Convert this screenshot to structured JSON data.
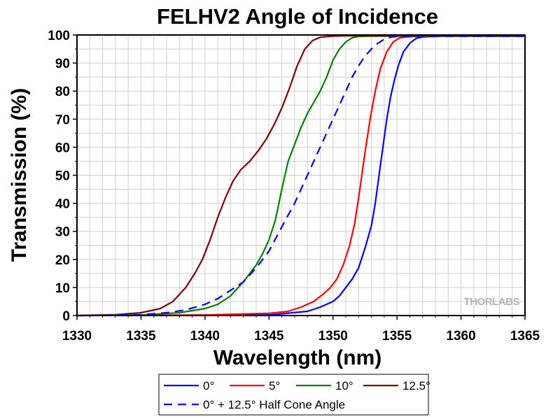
{
  "chart_data": {
    "type": "line",
    "title": "FELHV2 Angle of Incidence",
    "xlabel": "Wavelength (nm)",
    "ylabel": "Transmission (%)",
    "xlim": [
      1330,
      1365
    ],
    "ylim": [
      0,
      100
    ],
    "xticks": [
      1330,
      1335,
      1340,
      1345,
      1350,
      1355,
      1360,
      1365
    ],
    "yticks": [
      0,
      10,
      20,
      30,
      40,
      50,
      60,
      70,
      80,
      90,
      100
    ],
    "grid": true,
    "legend_position": "bottom",
    "watermark": "THORLABS",
    "series": [
      {
        "name": "0°",
        "color": "#0000ff",
        "dash": "solid",
        "x": [
          1330,
          1345,
          1348,
          1349,
          1350,
          1350.5,
          1351,
          1351.5,
          1352,
          1352.5,
          1353,
          1353.3,
          1353.6,
          1353.9,
          1354.2,
          1354.5,
          1354.8,
          1355.1,
          1355.5,
          1356,
          1356.5,
          1357,
          1358,
          1365
        ],
        "y": [
          0,
          0.2,
          1.5,
          3,
          5,
          7,
          10,
          13,
          17,
          24,
          32,
          40,
          50,
          60,
          70,
          78,
          84,
          89,
          94,
          97,
          98.8,
          99.3,
          99.5,
          99.6
        ]
      },
      {
        "name": "5°",
        "color": "#ff0000",
        "dash": "solid",
        "x": [
          1330,
          1340,
          1345,
          1346.5,
          1347.5,
          1348.5,
          1349.2,
          1349.8,
          1350.3,
          1350.8,
          1351.3,
          1351.7,
          1352.1,
          1352.5,
          1352.9,
          1353.3,
          1353.7,
          1354.2,
          1354.7,
          1355.2,
          1356,
          1357,
          1365
        ],
        "y": [
          0,
          0.2,
          0.8,
          1.5,
          3,
          5,
          7.5,
          10,
          13,
          18,
          25,
          33,
          45,
          58,
          70,
          80,
          88,
          94,
          97.5,
          99,
          99.4,
          99.5,
          99.6
        ]
      },
      {
        "name": "10°",
        "color": "#008000",
        "dash": "solid",
        "x": [
          1330,
          1335,
          1338,
          1340,
          1341,
          1342,
          1343,
          1344,
          1344.5,
          1345,
          1345.5,
          1346,
          1346.5,
          1347,
          1347.5,
          1348,
          1348.5,
          1349,
          1349.5,
          1350,
          1350.5,
          1351,
          1351.5,
          1352,
          1353,
          1365
        ],
        "y": [
          0,
          0.2,
          1,
          2.5,
          4,
          7,
          12,
          18,
          22,
          27,
          34,
          45,
          55,
          61,
          67,
          72,
          76,
          80,
          85,
          91,
          95,
          97.5,
          99,
          99.5,
          99.6,
          99.6
        ]
      },
      {
        "name": "12.5°",
        "color": "#800000",
        "dash": "solid",
        "x": [
          1330,
          1333,
          1335,
          1336.5,
          1337.5,
          1338.5,
          1339.2,
          1339.8,
          1340.4,
          1341,
          1341.6,
          1342.2,
          1342.8,
          1343.5,
          1344.2,
          1344.8,
          1345.4,
          1346,
          1346.6,
          1347.2,
          1347.8,
          1348.4,
          1349,
          1350,
          1351,
          1365
        ],
        "y": [
          0,
          0.3,
          1,
          2.5,
          5,
          10,
          15,
          20,
          27,
          35,
          42,
          48,
          52,
          55,
          59,
          63,
          68,
          74,
          81,
          89,
          95,
          98,
          99.2,
          99.6,
          99.7,
          99.7
        ]
      },
      {
        "name": "0° + 12.5° Half Cone Angle",
        "color": "#0000ff",
        "dash": "dashed",
        "x": [
          1330,
          1335,
          1337,
          1338.5,
          1340,
          1341,
          1342,
          1343,
          1344,
          1345,
          1345.7,
          1346.4,
          1347,
          1347.6,
          1348.2,
          1348.8,
          1349.4,
          1350,
          1350.5,
          1351,
          1351.5,
          1352,
          1352.5,
          1353,
          1353.5,
          1354,
          1354.5,
          1355,
          1356,
          1365
        ],
        "y": [
          0,
          0.3,
          1,
          2,
          4,
          6,
          9,
          12,
          17,
          23,
          29,
          35,
          40,
          46,
          52,
          58,
          64,
          70,
          75,
          80,
          85,
          89,
          92.5,
          95,
          97,
          98.5,
          99.2,
          99.5,
          99.6,
          99.6
        ]
      }
    ]
  }
}
